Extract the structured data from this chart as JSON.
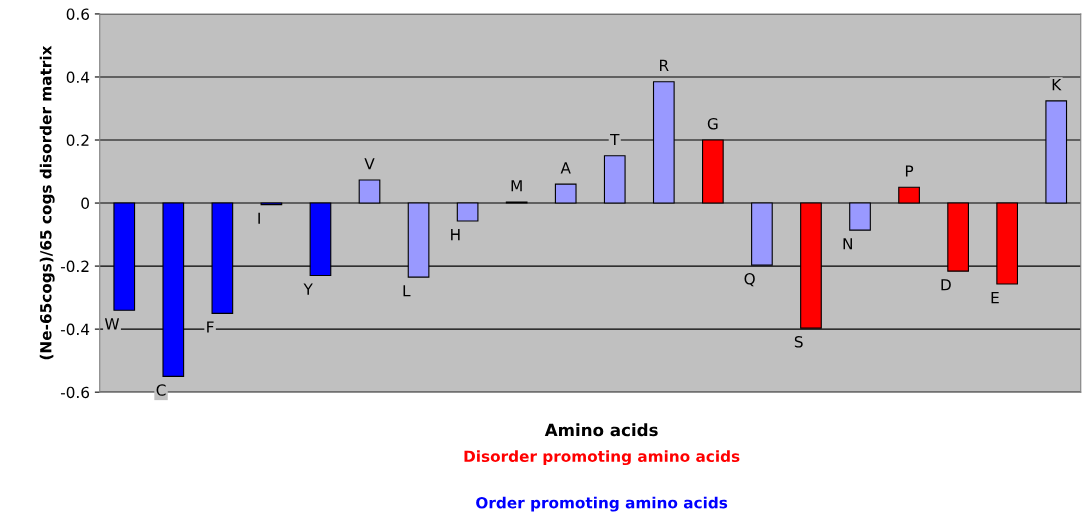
{
  "chart_data": {
    "type": "bar",
    "categories": [
      "W",
      "C",
      "F",
      "I",
      "Y",
      "V",
      "L",
      "H",
      "M",
      "A",
      "T",
      "R",
      "G",
      "Q",
      "S",
      "N",
      "P",
      "D",
      "E",
      "K"
    ],
    "series": [
      {
        "name": "Disorder promoting amino acids",
        "color": "#ff0000",
        "values": [
          null,
          null,
          null,
          null,
          null,
          null,
          null,
          null,
          null,
          null,
          null,
          null,
          0.2,
          null,
          -0.397,
          null,
          0.05,
          -0.216,
          -0.257,
          null
        ]
      },
      {
        "name": "Order promoting amino acids",
        "color": "#0000ff",
        "values": [
          -0.34,
          -0.55,
          -0.35,
          -0.005,
          -0.23,
          null,
          null,
          null,
          null,
          null,
          null,
          null,
          null,
          null,
          null,
          null,
          null,
          null,
          null,
          null
        ]
      },
      {
        "color": "#9999ff",
        "values": [
          null,
          null,
          null,
          null,
          null,
          0.073,
          -0.235,
          -0.057,
          0.003,
          0.06,
          0.15,
          0.385,
          null,
          -0.197,
          null,
          -0.086,
          null,
          null,
          null,
          0.324
        ]
      }
    ],
    "xlabel": "Amino acids",
    "ylabel": "(Ne-65cogs)/65 cogs disorder matrix",
    "ylim": [
      -0.6,
      0.6
    ],
    "yticks": [
      -0.6,
      -0.4,
      -0.2,
      0,
      0.2,
      0.4,
      0.6
    ],
    "grid": "y",
    "legend": "bottom"
  }
}
